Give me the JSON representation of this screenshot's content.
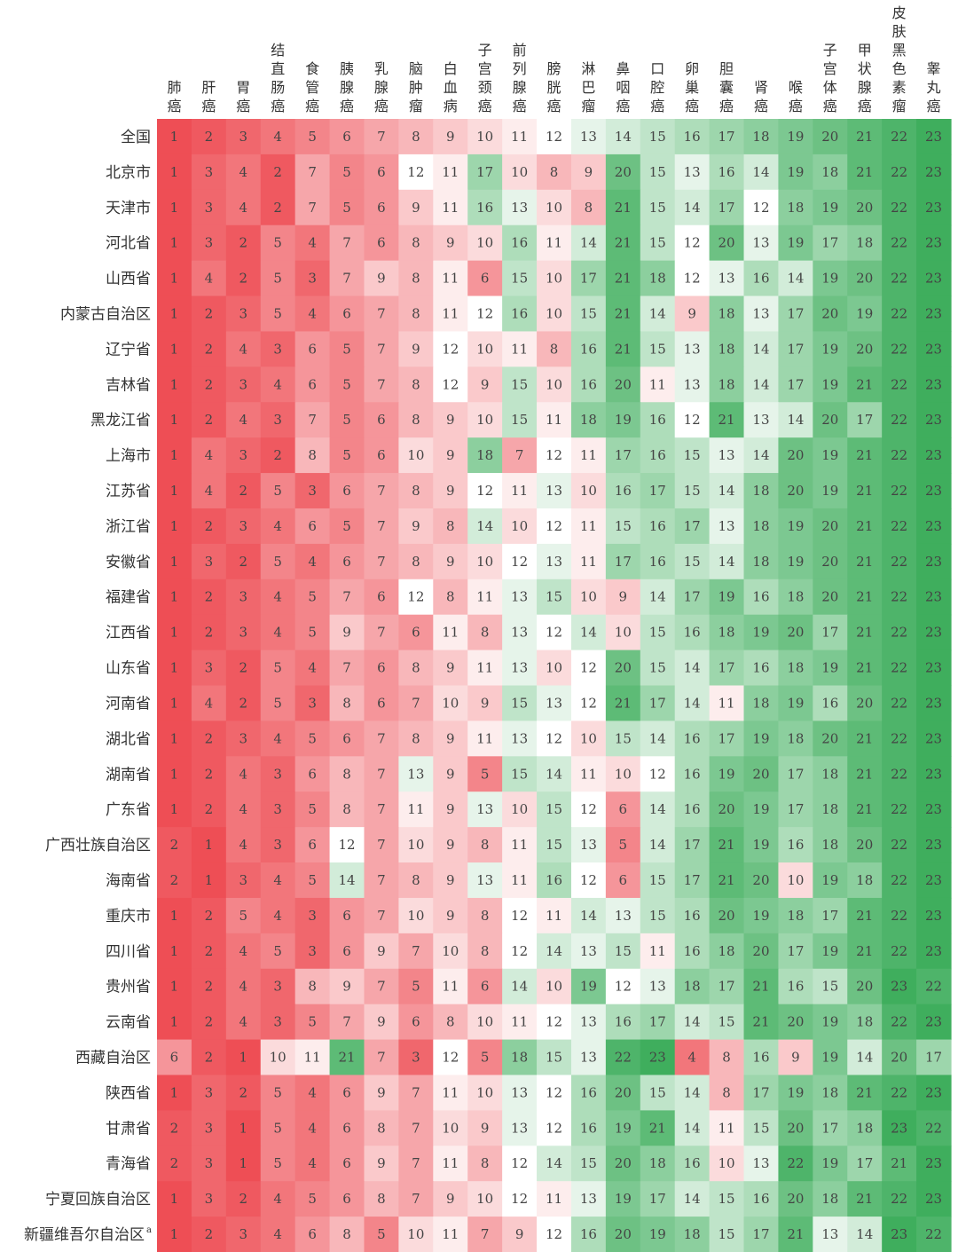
{
  "chart_data": {
    "type": "heatmap",
    "title": "",
    "color_scale": {
      "low": "#ee4e55",
      "mid": "#ffffff",
      "high": "#3fae5d"
    },
    "columns": [
      "肺癌",
      "肝癌",
      "胃癌",
      "结直肠癌",
      "食管癌",
      "胰腺癌",
      "乳腺癌",
      "脑肿瘤",
      "白血病",
      "子宫颈癌",
      "前列腺癌",
      "膀胱癌",
      "淋巴瘤",
      "鼻咽癌",
      "口腔癌",
      "卵巢癌",
      "胆囊癌",
      "肾癌",
      "喉癌",
      "子宫体癌",
      "甲状腺癌",
      "皮肤黑色素瘤",
      "睾丸癌"
    ],
    "rows": [
      "全国",
      "北京市",
      "天津市",
      "河北省",
      "山西省",
      "内蒙古自治区",
      "辽宁省",
      "吉林省",
      "黑龙江省",
      "上海市",
      "江苏省",
      "浙江省",
      "安徽省",
      "福建省",
      "江西省",
      "山东省",
      "河南省",
      "湖北省",
      "湖南省",
      "广东省",
      "广西壮族自治区",
      "海南省",
      "重庆市",
      "四川省",
      "贵州省",
      "云南省",
      "西藏自治区",
      "陕西省",
      "甘肃省",
      "青海省",
      "宁夏回族自治区",
      "新疆维吾尔自治区"
    ],
    "row_footnotes": {
      "新疆维吾尔自治区": "a"
    },
    "values": [
      [
        1,
        2,
        3,
        4,
        5,
        6,
        7,
        8,
        9,
        10,
        11,
        12,
        13,
        14,
        15,
        16,
        17,
        18,
        19,
        20,
        21,
        22,
        23
      ],
      [
        1,
        3,
        4,
        2,
        7,
        5,
        6,
        12,
        11,
        17,
        10,
        8,
        9,
        20,
        15,
        13,
        16,
        14,
        19,
        18,
        21,
        22,
        23
      ],
      [
        1,
        3,
        4,
        2,
        7,
        5,
        6,
        9,
        11,
        16,
        13,
        10,
        8,
        21,
        15,
        14,
        17,
        12,
        18,
        19,
        20,
        22,
        23
      ],
      [
        1,
        3,
        2,
        5,
        4,
        7,
        6,
        8,
        9,
        10,
        16,
        11,
        14,
        21,
        15,
        12,
        20,
        13,
        19,
        17,
        18,
        22,
        23
      ],
      [
        1,
        4,
        2,
        5,
        3,
        7,
        9,
        8,
        11,
        6,
        15,
        10,
        17,
        21,
        18,
        12,
        13,
        16,
        14,
        19,
        20,
        22,
        23
      ],
      [
        1,
        2,
        3,
        5,
        4,
        6,
        7,
        8,
        11,
        12,
        16,
        10,
        15,
        21,
        14,
        9,
        18,
        13,
        17,
        20,
        19,
        22,
        23
      ],
      [
        1,
        2,
        4,
        3,
        6,
        5,
        7,
        9,
        12,
        10,
        11,
        8,
        16,
        21,
        15,
        13,
        18,
        14,
        17,
        19,
        20,
        22,
        23
      ],
      [
        1,
        2,
        3,
        4,
        6,
        5,
        7,
        8,
        12,
        9,
        15,
        10,
        16,
        20,
        11,
        13,
        18,
        14,
        17,
        19,
        21,
        22,
        23
      ],
      [
        1,
        2,
        4,
        3,
        7,
        5,
        6,
        8,
        9,
        10,
        15,
        11,
        18,
        19,
        16,
        12,
        21,
        13,
        14,
        20,
        17,
        22,
        23
      ],
      [
        1,
        4,
        3,
        2,
        8,
        5,
        6,
        10,
        9,
        18,
        7,
        12,
        11,
        17,
        16,
        15,
        13,
        14,
        20,
        19,
        21,
        22,
        23
      ],
      [
        1,
        4,
        2,
        5,
        3,
        6,
        7,
        8,
        9,
        12,
        11,
        13,
        10,
        16,
        17,
        15,
        14,
        18,
        20,
        19,
        21,
        22,
        23
      ],
      [
        1,
        2,
        3,
        4,
        6,
        5,
        7,
        9,
        8,
        14,
        10,
        12,
        11,
        15,
        16,
        17,
        13,
        18,
        19,
        20,
        21,
        22,
        23
      ],
      [
        1,
        3,
        2,
        5,
        4,
        6,
        7,
        8,
        9,
        10,
        12,
        13,
        11,
        17,
        16,
        15,
        14,
        18,
        19,
        20,
        21,
        22,
        23
      ],
      [
        1,
        2,
        3,
        4,
        5,
        7,
        6,
        12,
        8,
        11,
        13,
        15,
        10,
        9,
        14,
        17,
        19,
        16,
        18,
        20,
        21,
        22,
        23
      ],
      [
        1,
        2,
        3,
        4,
        5,
        9,
        7,
        6,
        11,
        8,
        13,
        12,
        14,
        10,
        15,
        16,
        18,
        19,
        20,
        17,
        21,
        22,
        23
      ],
      [
        1,
        3,
        2,
        5,
        4,
        7,
        6,
        8,
        9,
        11,
        13,
        10,
        12,
        20,
        15,
        14,
        17,
        16,
        18,
        19,
        21,
        22,
        23
      ],
      [
        1,
        4,
        2,
        5,
        3,
        8,
        6,
        7,
        10,
        9,
        15,
        13,
        12,
        21,
        17,
        14,
        11,
        18,
        19,
        16,
        20,
        22,
        23
      ],
      [
        1,
        2,
        3,
        4,
        5,
        6,
        7,
        8,
        9,
        11,
        13,
        12,
        10,
        15,
        14,
        16,
        17,
        19,
        18,
        20,
        21,
        22,
        23
      ],
      [
        1,
        2,
        4,
        3,
        6,
        8,
        7,
        13,
        9,
        5,
        15,
        14,
        11,
        10,
        12,
        16,
        19,
        20,
        17,
        18,
        21,
        22,
        23
      ],
      [
        1,
        2,
        4,
        3,
        5,
        8,
        7,
        11,
        9,
        13,
        10,
        15,
        12,
        6,
        14,
        16,
        20,
        19,
        17,
        18,
        21,
        22,
        23
      ],
      [
        2,
        1,
        4,
        3,
        6,
        12,
        7,
        10,
        9,
        8,
        11,
        15,
        13,
        5,
        14,
        17,
        21,
        19,
        16,
        18,
        20,
        22,
        23
      ],
      [
        2,
        1,
        3,
        4,
        5,
        14,
        7,
        8,
        9,
        13,
        11,
        16,
        12,
        6,
        15,
        17,
        21,
        20,
        10,
        19,
        18,
        22,
        23
      ],
      [
        1,
        2,
        5,
        4,
        3,
        6,
        7,
        10,
        9,
        8,
        12,
        11,
        14,
        13,
        15,
        16,
        20,
        19,
        18,
        17,
        21,
        22,
        23
      ],
      [
        1,
        2,
        4,
        5,
        3,
        6,
        9,
        7,
        10,
        8,
        12,
        14,
        13,
        15,
        11,
        16,
        18,
        20,
        17,
        19,
        21,
        22,
        23
      ],
      [
        1,
        2,
        4,
        3,
        8,
        9,
        7,
        5,
        11,
        6,
        14,
        10,
        19,
        12,
        13,
        18,
        17,
        21,
        16,
        15,
        20,
        23,
        22
      ],
      [
        1,
        2,
        4,
        3,
        5,
        7,
        9,
        6,
        8,
        10,
        11,
        12,
        13,
        16,
        17,
        14,
        15,
        21,
        20,
        19,
        18,
        22,
        23
      ],
      [
        6,
        2,
        1,
        10,
        11,
        21,
        7,
        3,
        12,
        5,
        18,
        15,
        13,
        22,
        23,
        4,
        8,
        16,
        9,
        19,
        14,
        20,
        17
      ],
      [
        1,
        3,
        2,
        5,
        4,
        6,
        9,
        7,
        11,
        10,
        13,
        12,
        16,
        20,
        15,
        14,
        8,
        17,
        19,
        18,
        21,
        22,
        23
      ],
      [
        2,
        3,
        1,
        5,
        4,
        6,
        8,
        7,
        10,
        9,
        13,
        12,
        16,
        19,
        21,
        14,
        11,
        15,
        20,
        17,
        18,
        23,
        22
      ],
      [
        2,
        3,
        1,
        5,
        4,
        6,
        9,
        7,
        11,
        8,
        12,
        14,
        15,
        20,
        18,
        16,
        10,
        13,
        22,
        19,
        17,
        21,
        23
      ],
      [
        1,
        3,
        2,
        4,
        5,
        6,
        8,
        7,
        9,
        10,
        12,
        11,
        13,
        19,
        17,
        14,
        15,
        16,
        20,
        18,
        21,
        22,
        23
      ],
      [
        1,
        2,
        3,
        4,
        6,
        8,
        5,
        10,
        11,
        7,
        9,
        12,
        16,
        20,
        19,
        18,
        15,
        17,
        21,
        13,
        14,
        23,
        22
      ]
    ]
  }
}
